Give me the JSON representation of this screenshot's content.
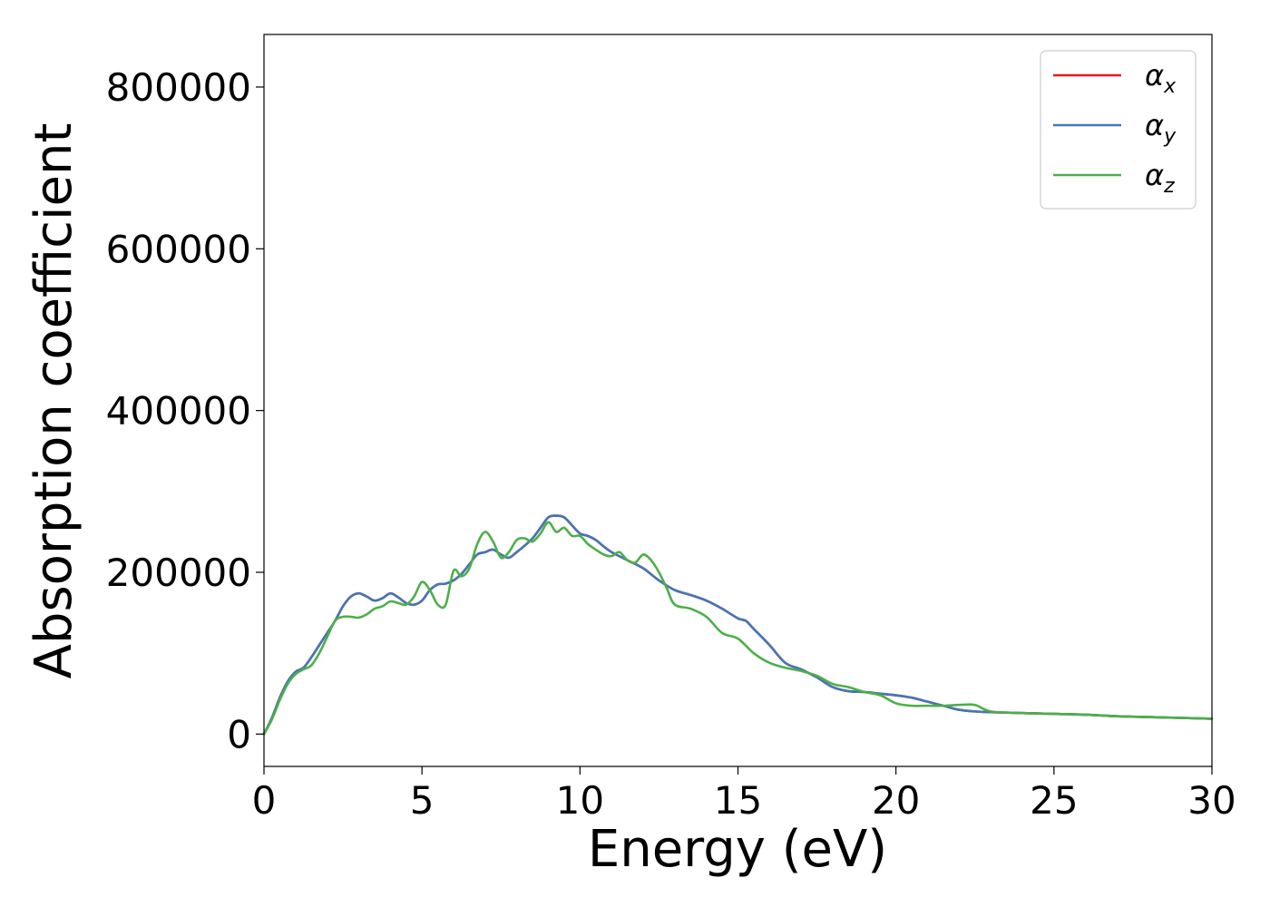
{
  "chart_data": {
    "type": "line",
    "xlabel": "Energy (eV)",
    "ylabel": "Absorption coefficient",
    "xlim": [
      0,
      30
    ],
    "ylim": [
      -40000,
      865000
    ],
    "xticks": [
      0,
      5,
      10,
      15,
      20,
      25,
      30
    ],
    "xtick_labels": [
      "0",
      "5",
      "10",
      "15",
      "20",
      "25",
      "30"
    ],
    "yticks": [
      0,
      200000,
      400000,
      600000,
      800000
    ],
    "ytick_labels": [
      "0",
      "200000",
      "400000",
      "600000",
      "800000"
    ],
    "grid": false,
    "legend_position": "top-right",
    "series": [
      {
        "name": "αx",
        "legend_base": "α",
        "legend_sub": "x",
        "color": "#e41a1c",
        "x": [
          0,
          0.25,
          0.5,
          0.75,
          1.0,
          1.25,
          1.5,
          1.75,
          2.0,
          2.25,
          2.5,
          2.75,
          3.0,
          3.25,
          3.5,
          3.75,
          4.0,
          4.25,
          4.5,
          4.75,
          5.0,
          5.25,
          5.5,
          5.75,
          6.0,
          6.25,
          6.5,
          6.75,
          7.0,
          7.25,
          7.5,
          7.75,
          8.0,
          8.25,
          8.5,
          8.75,
          9.0,
          9.25,
          9.5,
          9.75,
          10.0,
          10.25,
          10.5,
          10.75,
          11.0,
          11.5,
          12.0,
          12.5,
          13.0,
          13.5,
          14.0,
          14.5,
          15.0,
          15.25,
          15.5,
          16.0,
          16.5,
          17.0,
          17.5,
          18.0,
          18.5,
          19.0,
          19.5,
          20.0,
          20.5,
          21.0,
          21.5,
          22.0,
          22.5,
          23.0,
          24.0,
          25.0,
          26.0,
          27.0,
          28.0,
          29.0,
          30.0
        ],
        "y": [
          0,
          20000,
          45000,
          65000,
          77000,
          82000,
          95000,
          110000,
          125000,
          140000,
          158000,
          170000,
          174000,
          170000,
          165000,
          168000,
          174000,
          169000,
          162000,
          160000,
          165000,
          178000,
          185000,
          186000,
          190000,
          198000,
          210000,
          222000,
          225000,
          228000,
          222000,
          218000,
          225000,
          233000,
          242000,
          255000,
          268000,
          270000,
          268000,
          258000,
          248000,
          245000,
          240000,
          232000,
          225000,
          215000,
          205000,
          190000,
          178000,
          172000,
          165000,
          155000,
          143000,
          140000,
          130000,
          110000,
          88000,
          80000,
          70000,
          58000,
          53000,
          52000,
          50000,
          48000,
          45000,
          40000,
          35000,
          30000,
          28000,
          27000,
          26000,
          25000,
          24000,
          22000,
          21000,
          20000,
          19000
        ]
      },
      {
        "name": "αy",
        "legend_base": "α",
        "legend_sub": "y",
        "color": "#4477b5",
        "x": [
          0,
          0.25,
          0.5,
          0.75,
          1.0,
          1.25,
          1.5,
          1.75,
          2.0,
          2.25,
          2.5,
          2.75,
          3.0,
          3.25,
          3.5,
          3.75,
          4.0,
          4.25,
          4.5,
          4.75,
          5.0,
          5.25,
          5.5,
          5.75,
          6.0,
          6.25,
          6.5,
          6.75,
          7.0,
          7.25,
          7.5,
          7.75,
          8.0,
          8.25,
          8.5,
          8.75,
          9.0,
          9.25,
          9.5,
          9.75,
          10.0,
          10.25,
          10.5,
          10.75,
          11.0,
          11.5,
          12.0,
          12.5,
          13.0,
          13.5,
          14.0,
          14.5,
          15.0,
          15.25,
          15.5,
          16.0,
          16.5,
          17.0,
          17.5,
          18.0,
          18.5,
          19.0,
          19.5,
          20.0,
          20.5,
          21.0,
          21.5,
          22.0,
          22.5,
          23.0,
          24.0,
          25.0,
          26.0,
          27.0,
          28.0,
          29.0,
          30.0
        ],
        "y": [
          0,
          20000,
          45000,
          65000,
          77000,
          82000,
          95000,
          110000,
          125000,
          140000,
          158000,
          170000,
          174000,
          170000,
          165000,
          168000,
          174000,
          169000,
          162000,
          160000,
          165000,
          178000,
          185000,
          186000,
          190000,
          198000,
          210000,
          222000,
          225000,
          228000,
          222000,
          218000,
          225000,
          233000,
          242000,
          255000,
          268000,
          270000,
          268000,
          258000,
          248000,
          245000,
          240000,
          232000,
          225000,
          215000,
          205000,
          190000,
          178000,
          172000,
          165000,
          155000,
          143000,
          140000,
          130000,
          110000,
          88000,
          80000,
          70000,
          58000,
          53000,
          52000,
          50000,
          48000,
          45000,
          40000,
          35000,
          30000,
          28000,
          27000,
          26000,
          25000,
          24000,
          22000,
          21000,
          20000,
          19000
        ]
      },
      {
        "name": "αz",
        "legend_base": "α",
        "legend_sub": "z",
        "color": "#4daf4a",
        "x": [
          0,
          0.25,
          0.5,
          0.75,
          1.0,
          1.25,
          1.5,
          1.75,
          2.0,
          2.25,
          2.5,
          2.75,
          3.0,
          3.25,
          3.5,
          3.75,
          4.0,
          4.25,
          4.5,
          4.75,
          5.0,
          5.25,
          5.5,
          5.75,
          6.0,
          6.25,
          6.5,
          6.75,
          7.0,
          7.25,
          7.5,
          7.75,
          8.0,
          8.25,
          8.5,
          8.75,
          9.0,
          9.25,
          9.5,
          9.75,
          10.0,
          10.25,
          10.5,
          10.75,
          11.0,
          11.25,
          11.5,
          11.75,
          12.0,
          12.25,
          12.5,
          12.75,
          13.0,
          13.5,
          14.0,
          14.5,
          15.0,
          15.5,
          16.0,
          16.5,
          17.0,
          17.5,
          18.0,
          18.5,
          19.0,
          19.5,
          20.0,
          20.5,
          21.0,
          21.5,
          22.0,
          22.5,
          23.0,
          24.0,
          25.0,
          26.0,
          27.0,
          28.0,
          29.0,
          30.0
        ],
        "y": [
          0,
          18000,
          42000,
          62000,
          74000,
          80000,
          85000,
          100000,
          120000,
          140000,
          145000,
          145000,
          144000,
          148000,
          155000,
          158000,
          164000,
          162000,
          160000,
          170000,
          188000,
          178000,
          160000,
          160000,
          202000,
          195000,
          205000,
          235000,
          250000,
          238000,
          218000,
          225000,
          240000,
          242000,
          238000,
          248000,
          262000,
          250000,
          255000,
          245000,
          245000,
          235000,
          228000,
          222000,
          220000,
          225000,
          215000,
          212000,
          222000,
          215000,
          200000,
          180000,
          160000,
          155000,
          145000,
          125000,
          118000,
          100000,
          88000,
          82000,
          78000,
          72000,
          62000,
          58000,
          52000,
          48000,
          38000,
          35000,
          35000,
          35000,
          36000,
          36000,
          28000,
          26000,
          25000,
          24000,
          22000,
          21000,
          20000,
          19000
        ]
      }
    ]
  }
}
